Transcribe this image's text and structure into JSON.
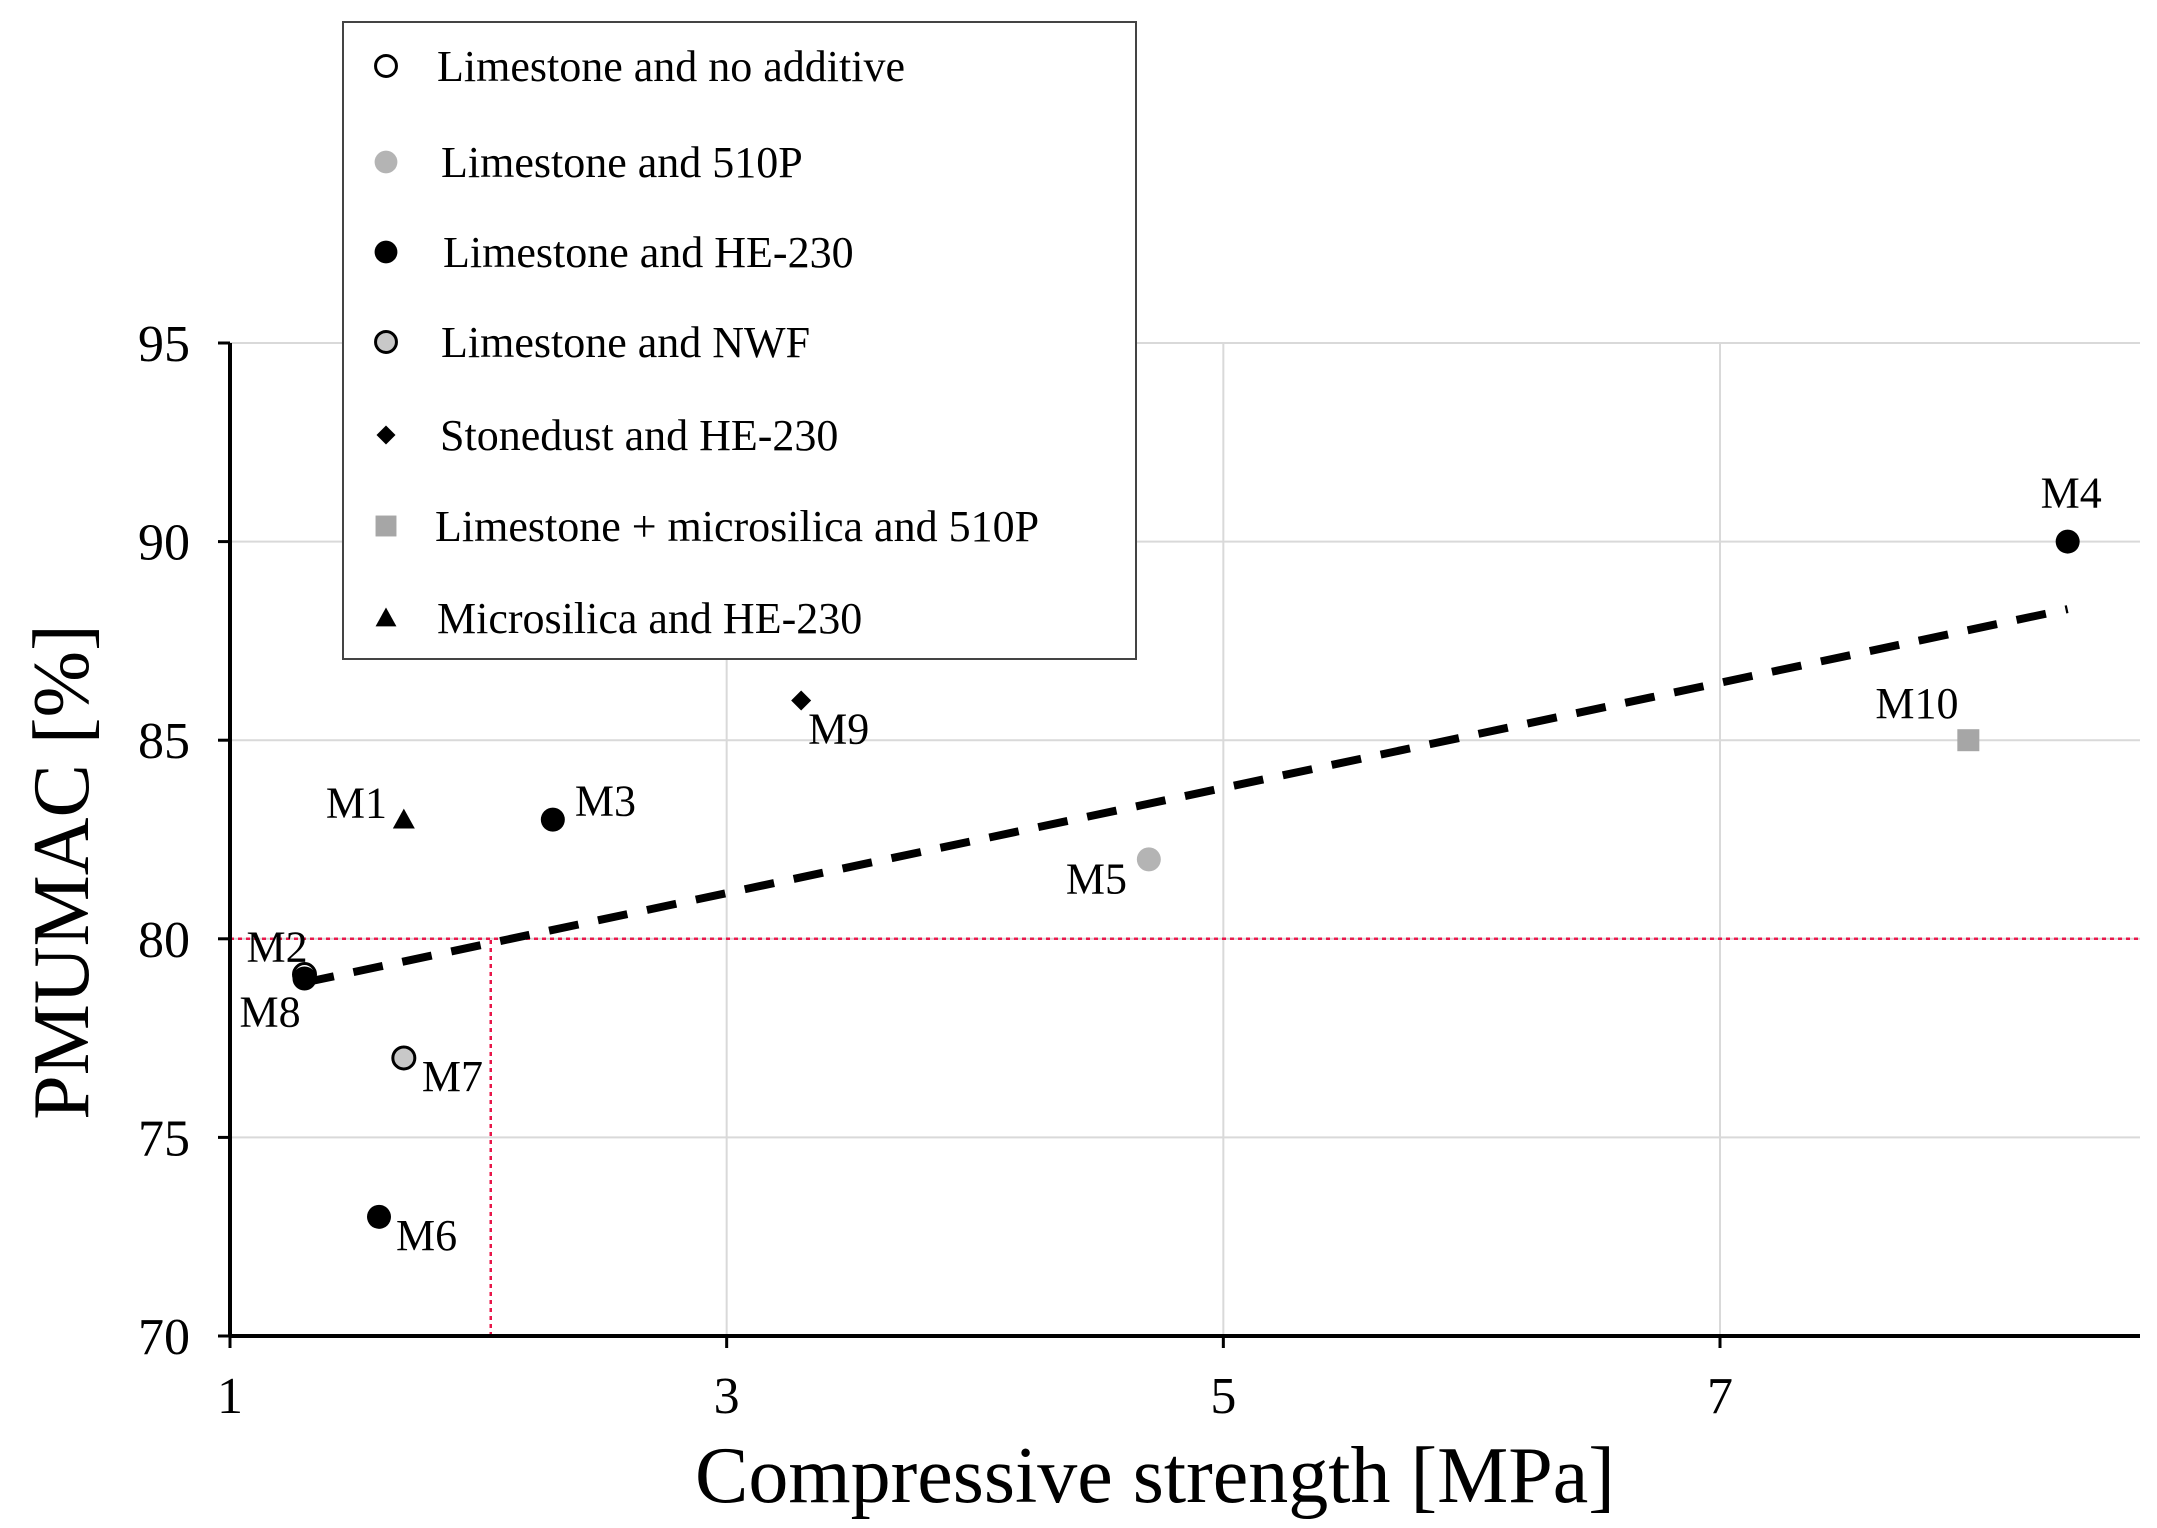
{
  "chart_data": {
    "type": "scatter",
    "title": "",
    "xlabel": "Compressive strength [MPa]",
    "ylabel": "PMUMAC [%]",
    "xlim": [
      1,
      8.8
    ],
    "ylim": [
      70,
      95
    ],
    "xticks": [
      1,
      3,
      5,
      7
    ],
    "yticks": [
      70,
      75,
      80,
      85,
      90,
      95
    ],
    "grid": true,
    "legend_position": "top-left",
    "series": [
      {
        "name": "Limestone and no additive",
        "marker": "circle-open",
        "color": "#ffffff",
        "stroke": "#000000",
        "points": [
          {
            "label": "M2",
            "x": 1.3,
            "y": 79.1
          }
        ]
      },
      {
        "name": "Limestone and 510P",
        "marker": "circle",
        "color": "#b4b4b4",
        "stroke": "#b4b4b4",
        "points": [
          {
            "label": "M5",
            "x": 4.7,
            "y": 82.0
          }
        ]
      },
      {
        "name": "Limestone and HE-230",
        "marker": "circle",
        "color": "#000000",
        "stroke": "#000000",
        "points": [
          {
            "label": "M3",
            "x": 2.3,
            "y": 83.0
          },
          {
            "label": "M4",
            "x": 8.4,
            "y": 90.0
          },
          {
            "label": "M6",
            "x": 1.6,
            "y": 73.0
          },
          {
            "label": "M8",
            "x": 1.3,
            "y": 79.0
          }
        ]
      },
      {
        "name": "Limestone and NWF",
        "marker": "circle-gray",
        "color": "#c8c8c8",
        "stroke": "#000000",
        "points": [
          {
            "label": "M7",
            "x": 1.7,
            "y": 77.0
          }
        ]
      },
      {
        "name": "Stonedust and HE-230",
        "marker": "diamond",
        "color": "#000000",
        "stroke": "#000000",
        "points": [
          {
            "label": "M9",
            "x": 3.3,
            "y": 86.0
          }
        ]
      },
      {
        "name": "Limestone + microsilica and 510P",
        "marker": "square",
        "color": "#a6a6a6",
        "stroke": "#a6a6a6",
        "points": [
          {
            "label": "M10",
            "x": 8.0,
            "y": 85.0
          }
        ]
      },
      {
        "name": "Microsilica and HE-230",
        "marker": "triangle",
        "color": "#000000",
        "stroke": "#000000",
        "points": [
          {
            "label": "M1",
            "x": 1.7,
            "y": 83.0
          }
        ]
      }
    ],
    "trendline": {
      "type": "linear",
      "style": "dashed",
      "color": "#000000",
      "x": [
        1.3,
        8.4
      ],
      "y": [
        78.9,
        88.3
      ]
    },
    "reference_lines": [
      {
        "orientation": "horizontal",
        "value": 80,
        "color": "#e8174a",
        "style": "dotted"
      },
      {
        "orientation": "vertical",
        "value": 2.05,
        "from": 70,
        "to": 80,
        "color": "#e8174a",
        "style": "dotted"
      }
    ]
  }
}
